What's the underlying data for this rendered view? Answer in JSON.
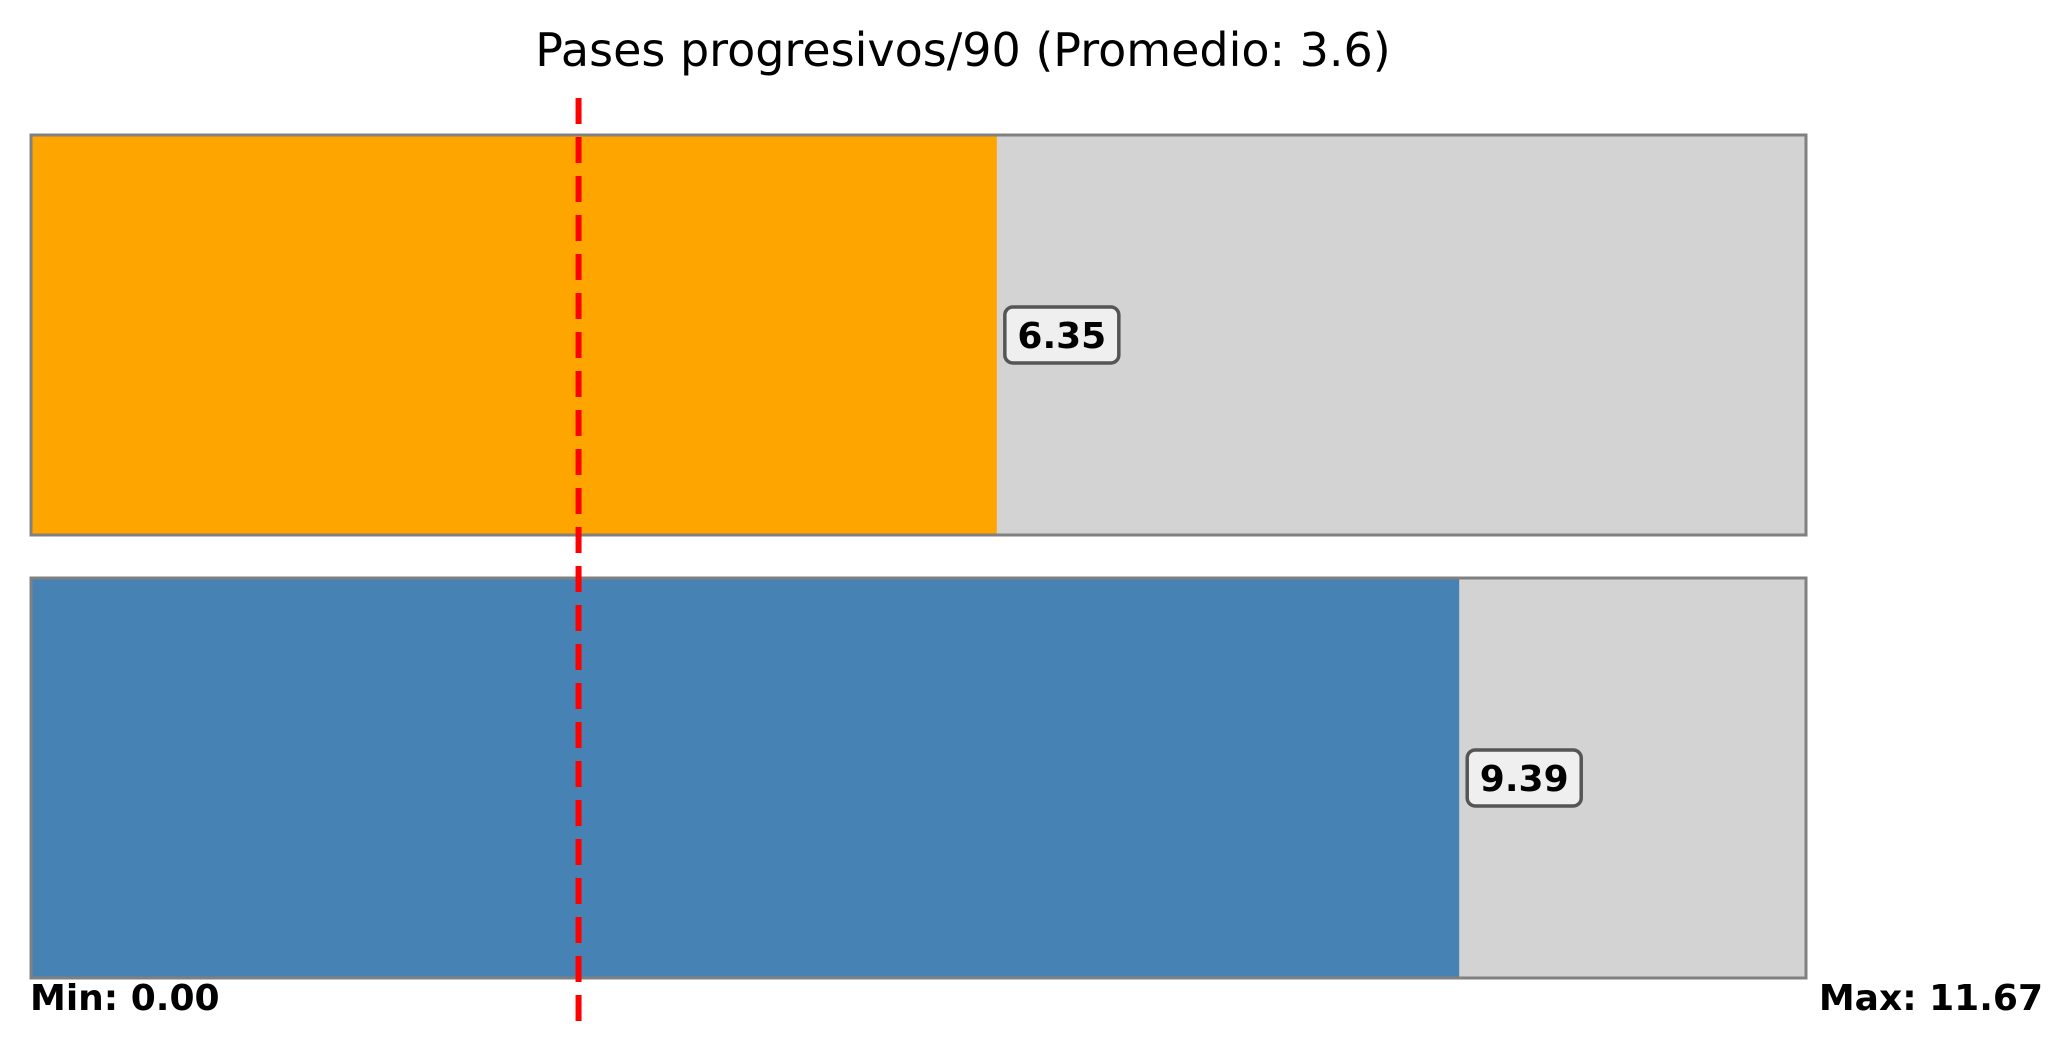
{
  "chart_data": {
    "type": "bar",
    "orientation": "horizontal",
    "title": "Pases progresivos/90 (Promedio: 3.6)",
    "xlim": [
      0,
      11.67
    ],
    "average": 3.6,
    "series": [
      {
        "value": 6.35,
        "label": "6.35",
        "color": "#ffa500"
      },
      {
        "value": 9.39,
        "label": "9.39",
        "color": "#4682b4"
      }
    ],
    "track_color": "#d3d3d3",
    "track_border_color": "#808080",
    "average_line_color": "#ff0000",
    "min_label": "Min: 0.00",
    "max_label": "Max: 11.67",
    "grid": false,
    "legend": "none"
  }
}
